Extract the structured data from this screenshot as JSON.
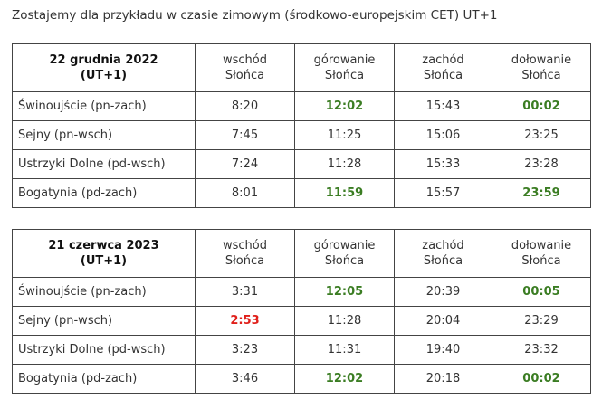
{
  "intro": "Zostajemy dla przykładu w czasie zimowym (środkowo-europejskim CET) UT+1",
  "tables": [
    {
      "header": [
        [
          "22 grudnia 2022",
          "(UT+1)"
        ],
        [
          "wschód",
          "Słońca"
        ],
        [
          "górowanie",
          "Słońca"
        ],
        [
          "zachód",
          "Słońca"
        ],
        [
          "dołowanie",
          "Słońca"
        ]
      ],
      "rows": [
        [
          "Świnoujście (pn-zach)",
          "8:20",
          "12:02",
          "15:43",
          "00:02"
        ],
        [
          "Sejny (pn-wsch)",
          "7:45",
          "11:25",
          "15:06",
          "23:25"
        ],
        [
          "Ustrzyki Dolne (pd-wsch)",
          "7:24",
          "11:28",
          "15:33",
          "23:28"
        ],
        [
          "Bogatynia (pd-zach)",
          "8:01",
          "11:59",
          "15:57",
          "23:59"
        ]
      ],
      "highlights": [
        {
          "row": 0,
          "col": 2,
          "color": "#3b7d23"
        },
        {
          "row": 0,
          "col": 4,
          "color": "#3b7d23"
        },
        {
          "row": 3,
          "col": 2,
          "color": "#3b7d23"
        },
        {
          "row": 3,
          "col": 4,
          "color": "#3b7d23"
        }
      ]
    },
    {
      "header": [
        [
          "21 czerwca 2023",
          "(UT+1)"
        ],
        [
          "wschód",
          "Słońca"
        ],
        [
          "górowanie",
          "Słońca"
        ],
        [
          "zachód",
          "Słońca"
        ],
        [
          "dołowanie",
          "Słońca"
        ]
      ],
      "rows": [
        [
          "Świnoujście (pn-zach)",
          "3:31",
          "12:05",
          "20:39",
          "00:05"
        ],
        [
          "Sejny (pn-wsch)",
          "2:53",
          "11:28",
          "20:04",
          "23:29"
        ],
        [
          "Ustrzyki Dolne (pd-wsch)",
          "3:23",
          "11:31",
          "19:40",
          "23:32"
        ],
        [
          "Bogatynia (pd-zach)",
          "3:46",
          "12:02",
          "20:18",
          "00:02"
        ]
      ],
      "highlights": [
        {
          "row": 0,
          "col": 2,
          "color": "#3b7d23"
        },
        {
          "row": 0,
          "col": 4,
          "color": "#3b7d23"
        },
        {
          "row": 1,
          "col": 1,
          "color": "#e0201b"
        },
        {
          "row": 3,
          "col": 2,
          "color": "#3b7d23"
        },
        {
          "row": 3,
          "col": 4,
          "color": "#3b7d23"
        }
      ]
    }
  ]
}
